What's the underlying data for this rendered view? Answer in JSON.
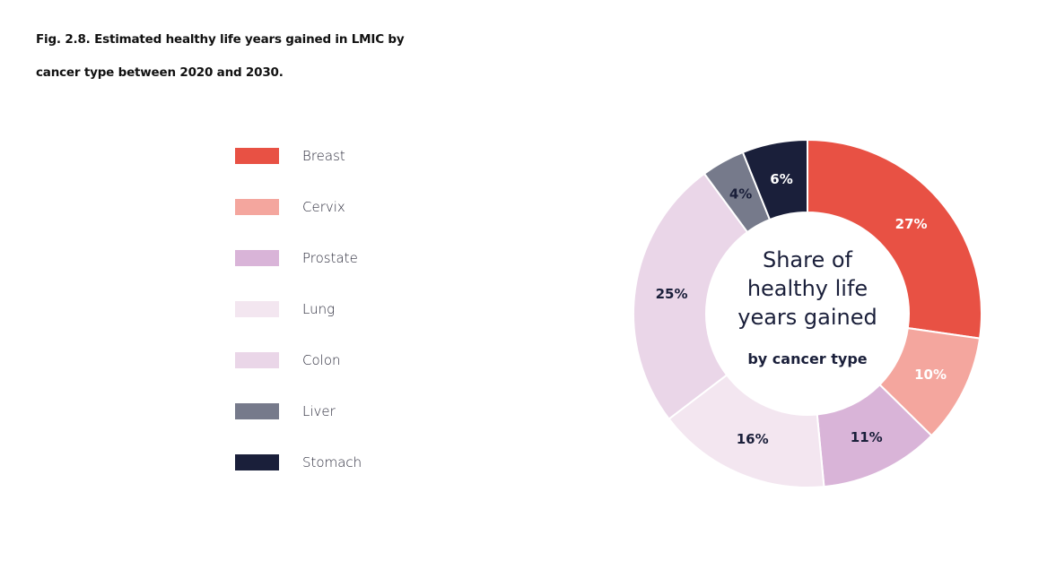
{
  "title_line1": "Fig. 2.8. Estimated healthy life years gained in LMIC by",
  "title_line2": "cancer type between 2020 and 2030.",
  "center_text": {
    "main": [
      "Share of",
      "healthy life",
      "years gained"
    ],
    "sub": "by cancer type"
  },
  "chart_data": {
    "type": "pie",
    "donut": true,
    "categories": [
      "Breast",
      "Cervix",
      "Prostate",
      "Lung",
      "Colon",
      "Liver",
      "Stomach"
    ],
    "values": [
      27,
      10,
      11,
      16,
      25,
      4,
      6
    ],
    "labels": [
      "27%",
      "10%",
      "11%",
      "16%",
      "25%",
      "4%",
      "6%"
    ],
    "colors": [
      "#e85144",
      "#f4a69e",
      "#d9b4d8",
      "#f3e6f0",
      "#ead6e8",
      "#767a8b",
      "#1a1f3a"
    ],
    "label_colors": [
      "#ffffff",
      "#ffffff",
      "#1a1f3a",
      "#1a1f3a",
      "#1a1f3a",
      "#1a1f3a",
      "#ffffff"
    ],
    "legend_position": "left"
  }
}
